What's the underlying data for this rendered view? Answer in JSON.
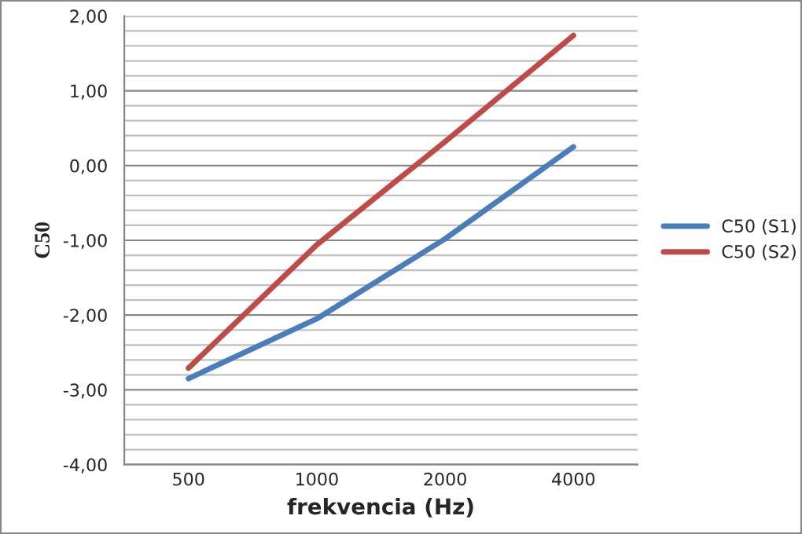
{
  "chart_data": {
    "type": "line",
    "xlabel": "frekvencia (Hz)",
    "ylabel": "C50",
    "categories": [
      "500",
      "1000",
      "2000",
      "4000"
    ],
    "series": [
      {
        "name": "C50 (S1)",
        "color": "#4a7ebb",
        "values": [
          -2.85,
          -2.05,
          -0.98,
          0.25
        ]
      },
      {
        "name": "C50 (S2)",
        "color": "#be4b48",
        "values": [
          -2.71,
          -1.06,
          0.32,
          1.74
        ]
      }
    ],
    "ylim": [
      -4,
      2
    ],
    "yticks": [
      {
        "value": -4,
        "label": "-4,00"
      },
      {
        "value": -3.8,
        "label": null
      },
      {
        "value": -3.6,
        "label": null
      },
      {
        "value": -3.4,
        "label": null
      },
      {
        "value": -3.2,
        "label": null
      },
      {
        "value": -3,
        "label": "-3,00"
      },
      {
        "value": -2.8,
        "label": null
      },
      {
        "value": -2.6,
        "label": null
      },
      {
        "value": -2.4,
        "label": null
      },
      {
        "value": -2.2,
        "label": null
      },
      {
        "value": -2,
        "label": "-2,00"
      },
      {
        "value": -1.8,
        "label": null
      },
      {
        "value": -1.6,
        "label": null
      },
      {
        "value": -1.4,
        "label": null
      },
      {
        "value": -1.2,
        "label": null
      },
      {
        "value": -1,
        "label": "-1,00"
      },
      {
        "value": -0.8,
        "label": null
      },
      {
        "value": -0.6,
        "label": null
      },
      {
        "value": -0.4,
        "label": null
      },
      {
        "value": -0.2,
        "label": null
      },
      {
        "value": 0,
        "label": "0,00"
      },
      {
        "value": 0.2,
        "label": null
      },
      {
        "value": 0.4,
        "label": null
      },
      {
        "value": 0.6,
        "label": null
      },
      {
        "value": 0.8,
        "label": null
      },
      {
        "value": 1,
        "label": "1,00"
      },
      {
        "value": 1.2,
        "label": null
      },
      {
        "value": 1.4,
        "label": null
      },
      {
        "value": 1.6,
        "label": null
      },
      {
        "value": 1.8,
        "label": null
      },
      {
        "value": 2,
        "label": "2,00"
      }
    ],
    "grid": "y",
    "legend": "right",
    "marker": "none",
    "line_style": "solid"
  }
}
